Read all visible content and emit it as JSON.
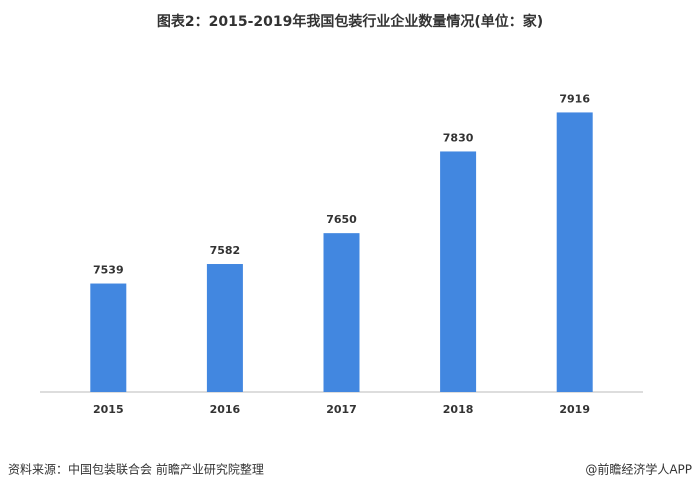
{
  "chart_data": {
    "type": "bar",
    "title": "图表2：2015-2019年我国包装行业企业数量情况(单位：家)",
    "categories": [
      "2015",
      "2016",
      "2017",
      "2018",
      "2019"
    ],
    "values": [
      7539,
      7582,
      7650,
      7830,
      7916
    ],
    "color": "#4287e0",
    "ylim": [
      7300,
      7950
    ],
    "grid": false,
    "source": "资料来源：中国包装联合会 前瞻产业研究院整理",
    "credit": "@前瞻经济学人APP"
  }
}
